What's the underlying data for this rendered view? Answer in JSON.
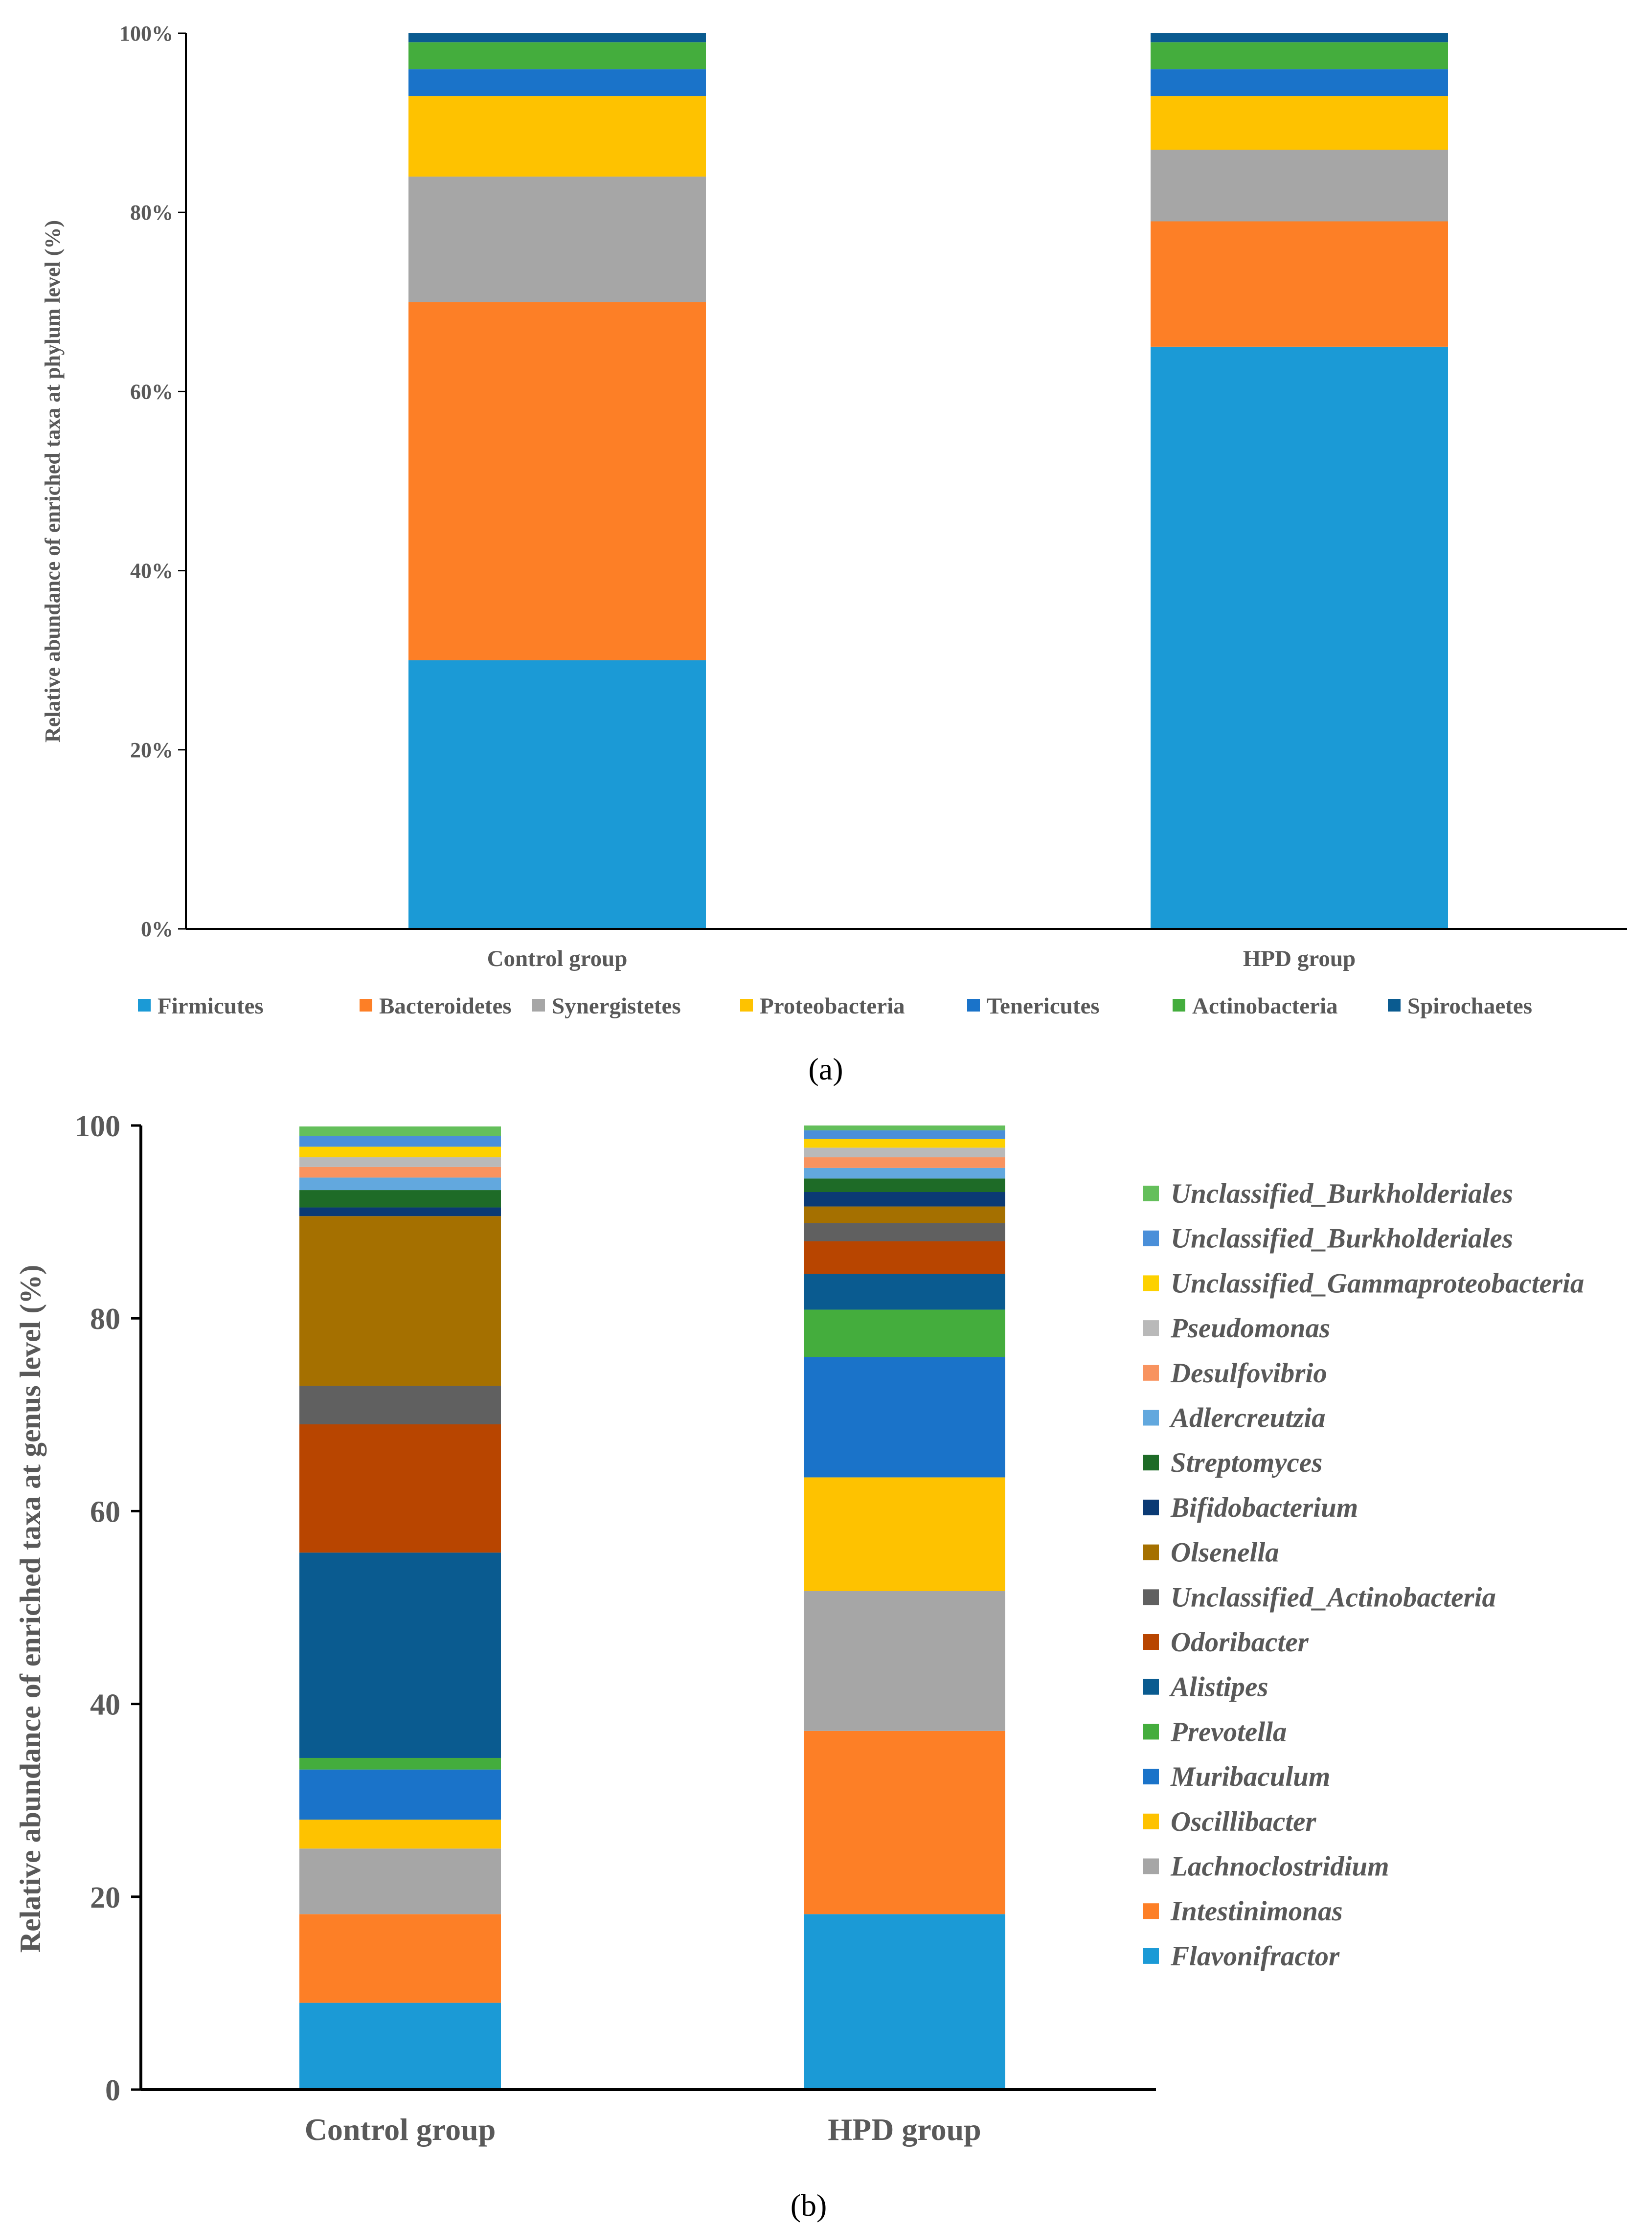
{
  "chart_data": [
    {
      "type": "bar",
      "stacked": true,
      "panel_label": "a",
      "ylabel": "Relative abundance of enriched taxa at phylum level (%)",
      "ylim": [
        0,
        100
      ],
      "ytick_labels": [
        "0%",
        "20%",
        "40%",
        "60%",
        "80%",
        "100%"
      ],
      "categories": [
        "Control group",
        "HPD group"
      ],
      "legend_position": "bottom",
      "series": [
        {
          "name": "Firmicutes",
          "color": "#1b9ad6",
          "values": [
            30,
            65
          ]
        },
        {
          "name": "Bacteroidetes",
          "color": "#fd7f26",
          "values": [
            40,
            14
          ]
        },
        {
          "name": "Synergistetes",
          "color": "#a6a6a6",
          "values": [
            14,
            8
          ]
        },
        {
          "name": "Proteobacteria",
          "color": "#fec200",
          "values": [
            9,
            6
          ]
        },
        {
          "name": "Tenericutes",
          "color": "#1a73c9",
          "values": [
            3,
            3
          ]
        },
        {
          "name": "Actinobacteria",
          "color": "#44ad3d",
          "values": [
            3,
            3
          ]
        },
        {
          "name": "Spirochaetes",
          "color": "#0a5b90",
          "values": [
            1,
            1
          ]
        }
      ]
    },
    {
      "type": "bar",
      "stacked": true,
      "panel_label": "b",
      "ylabel": "Relative abundance of enriched taxa at genus level (%)",
      "ylim": [
        0,
        100
      ],
      "ytick_labels": [
        "0",
        "20",
        "40",
        "60",
        "80",
        "100"
      ],
      "categories": [
        "Control group",
        "HPD group"
      ],
      "legend_position": "right",
      "series": [
        {
          "name": "Flavonifractor",
          "color": "#1b9ad6",
          "values": [
            9.0,
            18.2
          ]
        },
        {
          "name": "Intestinimonas",
          "color": "#fd7f26",
          "values": [
            9.2,
            19.0
          ]
        },
        {
          "name": "Lachnoclostridium",
          "color": "#a6a6a6",
          "values": [
            6.8,
            14.5
          ]
        },
        {
          "name": "Oscillibacter",
          "color": "#fec200",
          "values": [
            3.0,
            11.8
          ]
        },
        {
          "name": "Muribaculum",
          "color": "#1a73c9",
          "values": [
            5.2,
            12.5
          ]
        },
        {
          "name": "Prevotella",
          "color": "#44ad3d",
          "values": [
            1.2,
            4.9
          ]
        },
        {
          "name": "Alistipes",
          "color": "#0a5b90",
          "values": [
            21.3,
            3.7
          ]
        },
        {
          "name": "Odoribacter",
          "color": "#b84500",
          "values": [
            13.3,
            3.4
          ]
        },
        {
          "name": "Unclassified_Actinobacteria",
          "color": "#606060",
          "values": [
            4.0,
            1.9
          ]
        },
        {
          "name": "Olsenella",
          "color": "#a57000",
          "values": [
            17.6,
            1.7
          ]
        },
        {
          "name": "Bifidobacterium",
          "color": "#0b3a74",
          "values": [
            0.9,
            1.5
          ]
        },
        {
          "name": "Streptomyces",
          "color": "#1e6b27",
          "values": [
            1.8,
            1.4
          ]
        },
        {
          "name": "Adlercreutzia",
          "color": "#62a8de",
          "values": [
            1.3,
            1.1
          ]
        },
        {
          "name": "Desulfovibrio",
          "color": "#f8935f",
          "values": [
            1.1,
            1.1
          ]
        },
        {
          "name": "Pseudomonas",
          "color": "#b9b9b9",
          "values": [
            1.0,
            1.0
          ]
        },
        {
          "name": "Unclassified_Gammaproteobacteria",
          "color": "#fdd100",
          "values": [
            1.1,
            0.9
          ]
        },
        {
          "name": "Unclassified_Burkholderiales",
          "color": "#4a8fd9",
          "values": [
            1.1,
            0.9
          ]
        },
        {
          "name": "Unclassified_Burkholderiales",
          "color": "#64bf5b",
          "values": [
            1.0,
            0.5
          ]
        }
      ]
    }
  ],
  "captions": [
    "(a)",
    "(b)"
  ]
}
